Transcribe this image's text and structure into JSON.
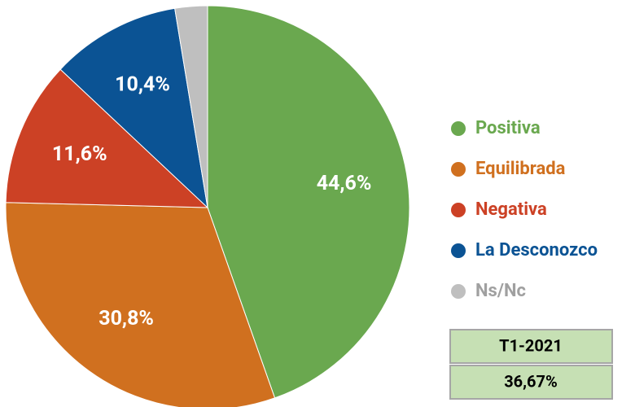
{
  "chart_data": {
    "type": "pie",
    "categories": [
      "Positiva",
      "Equilibrada",
      "Negativa",
      "La Desconozco",
      "Ns/Nc"
    ],
    "values": [
      44.6,
      30.8,
      11.6,
      10.4,
      2.6
    ],
    "value_labels": [
      "44,6%",
      "30,8%",
      "11,6%",
      "10,4%",
      null
    ],
    "colors": [
      "#6aa84f",
      "#d0701f",
      "#cc4125",
      "#0b5394",
      "#bfbfbf"
    ],
    "legend": "right"
  },
  "table": {
    "rows": [
      [
        "T1-2021"
      ],
      [
        "36,67%"
      ]
    ]
  }
}
